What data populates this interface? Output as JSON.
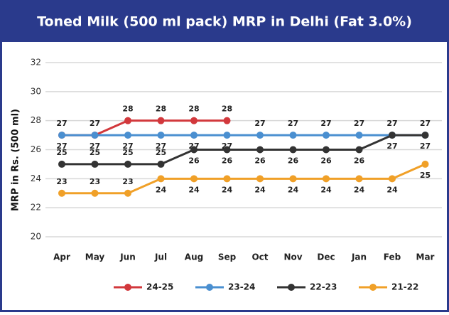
{
  "chart_data": {
    "type": "line",
    "title": "Toned Milk (500 ml pack) MRP in Delhi (Fat 3.0%)",
    "y_label": "MRP in Rs. (500 ml)",
    "categories": [
      "Apr",
      "May",
      "Jun",
      "Jul",
      "Aug",
      "Sep",
      "Oct",
      "Nov",
      "Dec",
      "Jan",
      "Feb",
      "Mar"
    ],
    "series": [
      {
        "name": "24-25",
        "color": "#d2383c",
        "values": [
          27,
          27,
          28,
          28,
          28,
          28,
          null,
          null,
          null,
          null,
          null,
          null
        ]
      },
      {
        "name": "23-24",
        "color": "#4a8fd0",
        "values": [
          27,
          27,
          27,
          27,
          27,
          27,
          27,
          27,
          27,
          27,
          27,
          27
        ]
      },
      {
        "name": "22-23",
        "color": "#333333",
        "values": [
          25,
          25,
          25,
          25,
          26,
          26,
          26,
          26,
          26,
          26,
          27,
          27
        ]
      },
      {
        "name": "21-22",
        "color": "#f0a028",
        "values": [
          23,
          23,
          23,
          24,
          24,
          24,
          24,
          24,
          24,
          24,
          24,
          25
        ]
      }
    ],
    "ylim": [
      20,
      32
    ],
    "yticks": [
      20,
      22,
      24,
      26,
      28,
      30,
      32
    ],
    "grid": true,
    "legend": "bottom"
  }
}
